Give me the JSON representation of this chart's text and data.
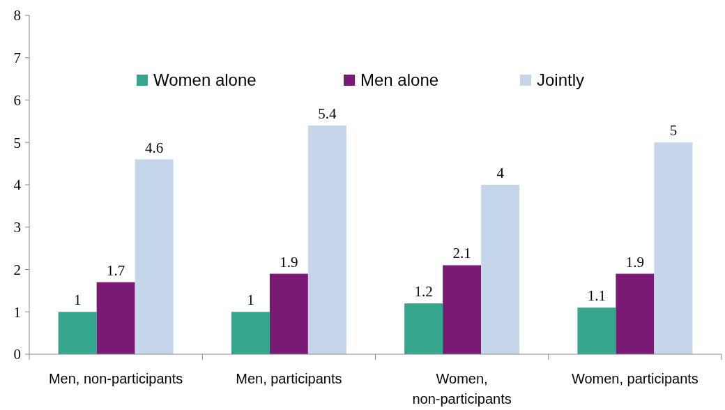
{
  "chart_data": {
    "type": "bar",
    "categories": [
      "Men, non-participants",
      "Men, participants",
      "Women, non-participants",
      "Women, participants"
    ],
    "series": [
      {
        "name": "Women alone",
        "color": "#36a68e",
        "values": [
          1,
          1,
          1.2,
          1.1
        ]
      },
      {
        "name": "Men alone",
        "color": "#7b1a74",
        "values": [
          1.7,
          1.9,
          2.1,
          1.9
        ]
      },
      {
        "name": "Jointly",
        "color": "#c5d6ea",
        "values": [
          4.6,
          5.4,
          4,
          5
        ]
      }
    ],
    "ylim": [
      0,
      8
    ],
    "yticks": [
      0,
      1,
      2,
      3,
      4,
      5,
      6,
      7,
      8
    ],
    "grid": false,
    "legend": "top",
    "data_labels": true
  }
}
